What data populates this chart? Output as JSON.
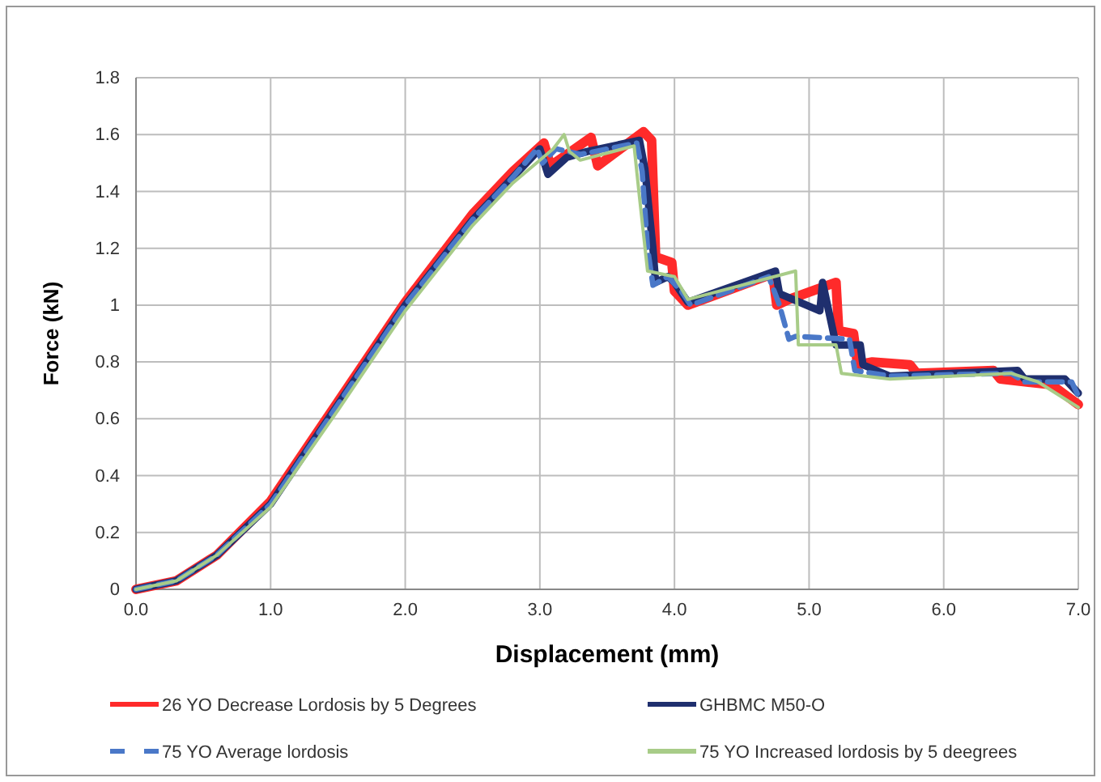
{
  "chart_data": {
    "type": "line",
    "xlabel": "Displacement (mm)",
    "ylabel": "Force (kN)",
    "xlim": [
      0,
      7
    ],
    "ylim": [
      0,
      1.8
    ],
    "xticks": [
      {
        "value": 0,
        "label": "0.0"
      },
      {
        "value": 1,
        "label": "1.0"
      },
      {
        "value": 2,
        "label": "2.0"
      },
      {
        "value": 3,
        "label": "3.0"
      },
      {
        "value": 4,
        "label": "4.0"
      },
      {
        "value": 5,
        "label": "5.0"
      },
      {
        "value": 6,
        "label": "6.0"
      },
      {
        "value": 7,
        "label": "7.0"
      }
    ],
    "yticks": [
      0,
      0.2,
      0.4,
      0.6,
      0.8,
      1,
      1.2,
      1.4,
      1.6,
      1.8
    ],
    "grid": true,
    "legend": "bottom",
    "marker": "none",
    "series": [
      {
        "name": "26 YO Decrease Lordosis by 5 Degrees",
        "color": "#ff2a2a",
        "line_style": "solid",
        "x": [
          0,
          0.3,
          0.6,
          1.0,
          1.5,
          2.0,
          2.5,
          2.8,
          3.03,
          3.08,
          3.38,
          3.43,
          3.77,
          3.83,
          3.86,
          3.98,
          4.0,
          4.1,
          4.73,
          4.76,
          4.85,
          5.2,
          5.22,
          5.33,
          5.36,
          5.47,
          5.75,
          5.8,
          6.37,
          6.42,
          6.8,
          7.0
        ],
        "values": [
          0,
          0.03,
          0.12,
          0.31,
          0.66,
          1.01,
          1.32,
          1.47,
          1.57,
          1.49,
          1.59,
          1.49,
          1.61,
          1.58,
          1.17,
          1.15,
          1.05,
          1.0,
          1.11,
          1.0,
          1.02,
          1.08,
          0.91,
          0.9,
          0.79,
          0.8,
          0.79,
          0.76,
          0.77,
          0.74,
          0.72,
          0.65
        ]
      },
      {
        "name": "GHBMC M50-O",
        "color": "#1f2f6e",
        "line_style": "solid",
        "x": [
          0,
          0.3,
          0.6,
          1.0,
          1.5,
          2.0,
          2.5,
          2.8,
          3.0,
          3.06,
          3.2,
          3.35,
          3.74,
          3.78,
          3.84,
          3.86,
          3.95,
          4.0,
          4.1,
          4.75,
          4.78,
          5.08,
          5.1,
          5.2,
          5.38,
          5.4,
          5.6,
          6.55,
          6.6,
          6.9,
          7.0
        ],
        "values": [
          0,
          0.03,
          0.12,
          0.3,
          0.65,
          1.0,
          1.3,
          1.45,
          1.55,
          1.46,
          1.52,
          1.54,
          1.58,
          1.48,
          1.2,
          1.08,
          1.1,
          1.08,
          1.01,
          1.12,
          1.04,
          0.98,
          1.08,
          0.86,
          0.86,
          0.79,
          0.75,
          0.77,
          0.74,
          0.74,
          0.69
        ]
      },
      {
        "name": "75 YO Average lordosis",
        "color": "#4a78c8",
        "line_style": "dashed",
        "x": [
          0,
          0.3,
          0.6,
          1.0,
          1.5,
          2.0,
          2.5,
          2.8,
          2.98,
          3.02,
          3.12,
          3.3,
          3.72,
          3.76,
          3.8,
          3.84,
          3.95,
          4.05,
          4.12,
          4.7,
          4.78,
          4.85,
          4.9,
          5.3,
          5.34,
          5.6,
          6.5,
          6.6,
          6.95,
          7.0
        ],
        "values": [
          0,
          0.03,
          0.12,
          0.3,
          0.65,
          1.0,
          1.3,
          1.45,
          1.55,
          1.5,
          1.55,
          1.53,
          1.57,
          1.47,
          1.2,
          1.07,
          1.1,
          1.05,
          1.0,
          1.1,
          1.0,
          0.88,
          0.89,
          0.88,
          0.77,
          0.75,
          0.76,
          0.73,
          0.73,
          0.68
        ]
      },
      {
        "name": "75 YO Increased lordosis by 5 deegrees",
        "color": "#a8cc88",
        "line_style": "solid",
        "x": [
          0,
          0.3,
          0.6,
          1.0,
          1.5,
          2.0,
          2.5,
          2.8,
          3.1,
          3.18,
          3.22,
          3.3,
          3.7,
          3.74,
          3.8,
          4.0,
          4.1,
          4.9,
          4.92,
          5.2,
          5.24,
          5.6,
          6.5,
          6.7,
          7.0
        ],
        "values": [
          0,
          0.03,
          0.12,
          0.29,
          0.63,
          0.98,
          1.28,
          1.43,
          1.55,
          1.6,
          1.54,
          1.51,
          1.56,
          1.38,
          1.12,
          1.1,
          1.02,
          1.12,
          0.86,
          0.86,
          0.76,
          0.74,
          0.76,
          0.73,
          0.64
        ]
      }
    ]
  }
}
